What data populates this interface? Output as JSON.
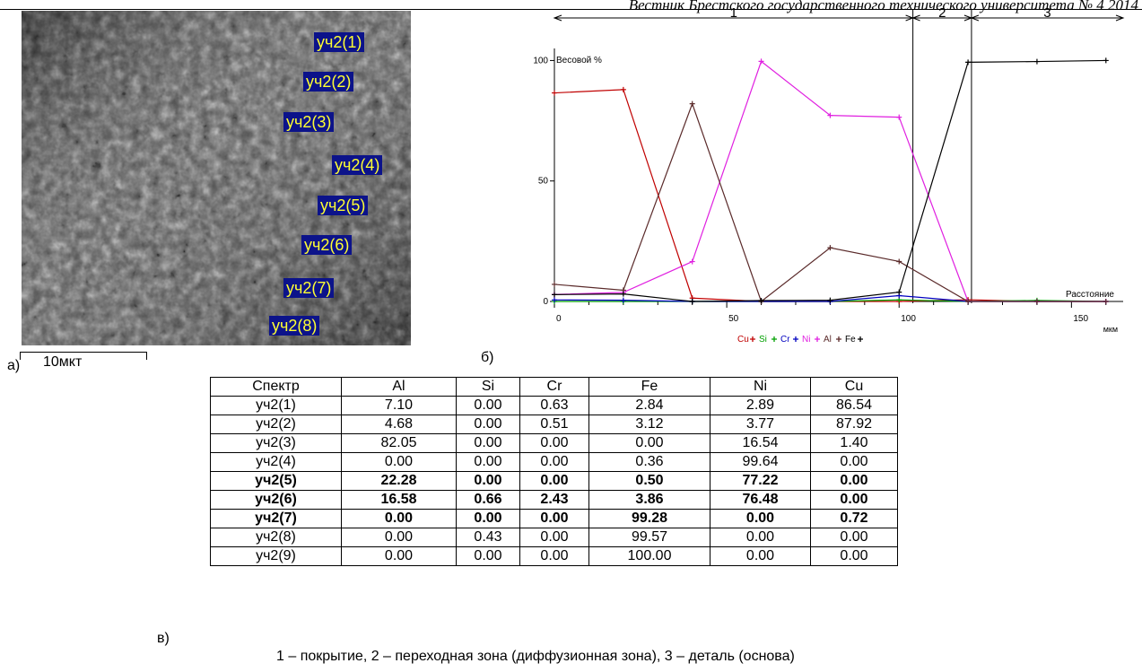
{
  "header": {
    "text": "Вестник Брестского государственного технического университета № 4 2014"
  },
  "panel_a": {
    "letter": "а)",
    "scale_label": "10мкт",
    "labels": [
      "уч2(1)",
      "уч2(2)",
      "уч2(3)",
      "уч2(4)",
      "уч2(5)",
      "уч2(6)",
      "уч2(7)",
      "уч2(8)"
    ]
  },
  "panel_b": {
    "letter": "б)"
  },
  "panel_c": {
    "letter": "в)"
  },
  "chart_data": {
    "type": "line",
    "ylabel": "Весовой %",
    "xlabel": "Расстояние",
    "x_unit": "мкм",
    "xlim": [
      0,
      165
    ],
    "ylim": [
      0,
      105
    ],
    "x_ticks": [
      0,
      50,
      100,
      150
    ],
    "y_ticks": [
      0,
      50,
      100
    ],
    "zones": [
      {
        "label": "1",
        "from": 0,
        "to": 104
      },
      {
        "label": "2",
        "from": 104,
        "to": 121
      },
      {
        "label": "3",
        "from": 121,
        "to": 165
      }
    ],
    "legend": [
      "Cu",
      "Si",
      "Cr",
      "Ni",
      "Al",
      "Fe"
    ],
    "series": [
      {
        "name": "Cu",
        "color": "#c00000",
        "x": [
          0,
          20,
          40,
          60,
          80,
          100,
          120,
          140,
          160
        ],
        "y": [
          86.54,
          87.92,
          1.4,
          0,
          0,
          0,
          0.72,
          0,
          0
        ]
      },
      {
        "name": "Si",
        "color": "#00a000",
        "x": [
          0,
          20,
          40,
          60,
          80,
          100,
          120,
          140,
          160
        ],
        "y": [
          0,
          0,
          0,
          0,
          0,
          0.66,
          0,
          0.43,
          0
        ]
      },
      {
        "name": "Cr",
        "color": "#0000c0",
        "x": [
          0,
          20,
          40,
          60,
          80,
          100,
          120,
          140,
          160
        ],
        "y": [
          0.63,
          0.51,
          0,
          0,
          0,
          2.43,
          0,
          0,
          0
        ]
      },
      {
        "name": "Ni",
        "color": "#e020e0",
        "x": [
          0,
          20,
          40,
          60,
          80,
          100,
          120,
          140,
          160
        ],
        "y": [
          2.89,
          3.77,
          16.54,
          99.64,
          77.22,
          76.48,
          0,
          0,
          0
        ]
      },
      {
        "name": "Al",
        "color": "#5a2a2a",
        "x": [
          0,
          20,
          40,
          60,
          80,
          100,
          120,
          140,
          160
        ],
        "y": [
          7.1,
          4.68,
          82.05,
          0,
          22.28,
          16.58,
          0,
          0,
          0
        ]
      },
      {
        "name": "Fe",
        "color": "#000000",
        "x": [
          0,
          20,
          40,
          60,
          80,
          100,
          120,
          140,
          160
        ],
        "y": [
          2.84,
          3.12,
          0,
          0.36,
          0.5,
          3.86,
          99.28,
          99.57,
          100
        ]
      }
    ]
  },
  "table": {
    "headers": [
      "Спектр",
      "Al",
      "Si",
      "Cr",
      "Fe",
      "Ni",
      "Cu"
    ],
    "rows": [
      {
        "bold": false,
        "cells": [
          "уч2(1)",
          "7.10",
          "0.00",
          "0.63",
          "2.84",
          "2.89",
          "86.54"
        ]
      },
      {
        "bold": false,
        "cells": [
          "уч2(2)",
          "4.68",
          "0.00",
          "0.51",
          "3.12",
          "3.77",
          "87.92"
        ]
      },
      {
        "bold": false,
        "cells": [
          "уч2(3)",
          "82.05",
          "0.00",
          "0.00",
          "0.00",
          "16.54",
          "1.40"
        ]
      },
      {
        "bold": false,
        "cells": [
          "уч2(4)",
          "0.00",
          "0.00",
          "0.00",
          "0.36",
          "99.64",
          "0.00"
        ]
      },
      {
        "bold": true,
        "cells": [
          "уч2(5)",
          "22.28",
          "0.00",
          "0.00",
          "0.50",
          "77.22",
          "0.00"
        ]
      },
      {
        "bold": true,
        "cells": [
          "уч2(6)",
          "16.58",
          "0.66",
          "2.43",
          "3.86",
          "76.48",
          "0.00"
        ]
      },
      {
        "bold": true,
        "cells": [
          "уч2(7)",
          "0.00",
          "0.00",
          "0.00",
          "99.28",
          "0.00",
          "0.72"
        ]
      },
      {
        "bold": false,
        "cells": [
          "уч2(8)",
          "0.00",
          "0.43",
          "0.00",
          "99.57",
          "0.00",
          "0.00"
        ]
      },
      {
        "bold": false,
        "cells": [
          "уч2(9)",
          "0.00",
          "0.00",
          "0.00",
          "100.00",
          "0.00",
          "0.00"
        ]
      }
    ]
  },
  "caption": "1 – покрытие, 2 – переходная зона (диффузионная зона), 3 – деталь (основа)"
}
